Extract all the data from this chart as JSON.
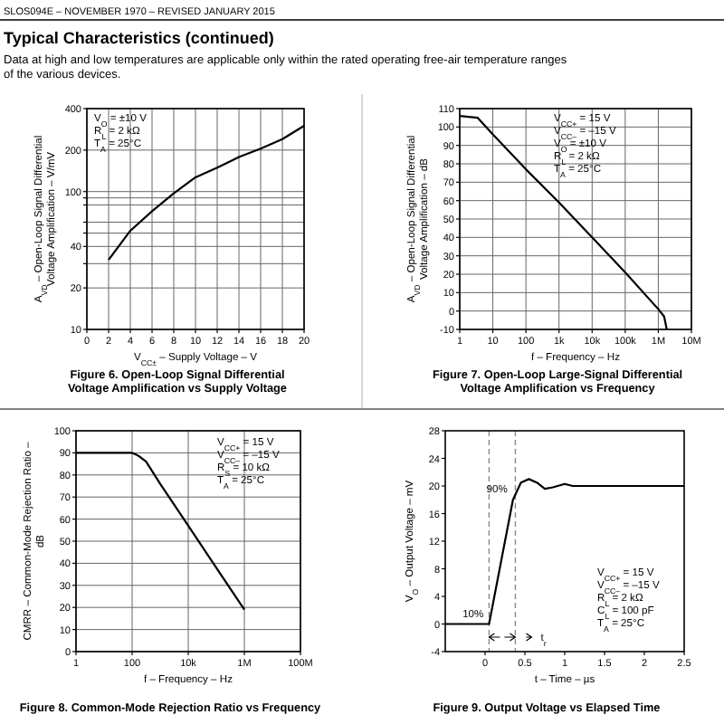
{
  "chart_data": [
    {
      "type": "other",
      "title": "Typical Characteristics (continued)",
      "annotations": [
        "SLOS094E – NOVEMBER 1970 – REVISED JANUARY 2015",
        "Data at high and low temperatures are applicable only within the rated operating free-air temperature ranges of the various devices."
      ]
    },
    {
      "type": "line",
      "title": "Figure 6. Open-Loop Signal Differential Voltage Amplification vs Supply Voltage",
      "xlabel": "V$_{CC±}$ – Supply Voltage – V",
      "ylabel": "A$_{VD}$ – Open-Loop Signal Differential Voltage Amplification – V/mV",
      "x": [
        2,
        4,
        6,
        8,
        10,
        12,
        14,
        16,
        18,
        20
      ],
      "values": [
        32,
        52,
        72,
        97,
        127,
        149,
        178,
        205,
        240,
        300
      ],
      "color": "#000000",
      "log": "y",
      "xlim": [
        0,
        20
      ],
      "ylim": [
        10,
        400
      ],
      "xticks": [
        0,
        2,
        4,
        6,
        8,
        10,
        12,
        14,
        16,
        18,
        20
      ],
      "yticks": [
        10,
        20,
        {
          "value": 30,
          "label": null
        },
        40,
        {
          "value": 50,
          "label": null
        },
        {
          "value": 60,
          "label": null
        },
        {
          "value": 80,
          "label": null
        },
        {
          "value": 90,
          "label": null
        },
        100,
        200,
        400
      ],
      "grid": true,
      "annotations": [
        "V$_{O}$ = ±10 V",
        "R$_{L}$ = 2 kΩ",
        "T$_{A}$ = 25°C"
      ]
    },
    {
      "type": "line",
      "title": "Figure 7. Open-Loop Large-Signal Differential Voltage Amplification vs Frequency",
      "xlabel": "f – Frequency – Hz",
      "ylabel": "A$_{VD}$ – Open-Loop Signal Differential Voltage Amplification – dB",
      "x": [
        1,
        3.5,
        10,
        100,
        1000,
        10000,
        100000,
        1000000,
        1500000,
        1800000
      ],
      "values": [
        106,
        105,
        96,
        77,
        59,
        40,
        21,
        1,
        -3,
        -10
      ],
      "color": "#000000",
      "log": "x",
      "xlim": [
        1,
        10000000
      ],
      "ylim": [
        -10,
        110
      ],
      "xticks": [
        1,
        10,
        100,
        {
          "value": 1000,
          "label": "1k"
        },
        {
          "value": 10000,
          "label": "10k"
        },
        {
          "value": 100000,
          "label": "100k"
        },
        {
          "value": 1000000,
          "label": "1M"
        },
        {
          "value": 10000000,
          "label": "10M"
        }
      ],
      "yticks": [
        -10,
        0,
        10,
        20,
        30,
        40,
        50,
        60,
        70,
        80,
        90,
        100,
        110
      ],
      "grid": true,
      "annotations": [
        "V$_{CC+}$ = 15 V",
        "V$_{CC–}$ = –15 V",
        "V$_{O}$ = ±10 V",
        "R$_{L}$ = 2 kΩ",
        "T$_{A}$ = 25°C"
      ]
    },
    {
      "type": "line",
      "title": "Figure 8. Common-Mode Rejection Ratio vs Frequency",
      "xlabel": "f – Frequency – Hz",
      "ylabel": "CMRR – Common-Mode Rejection Ratio – dB",
      "x": [
        1,
        100,
        150,
        200,
        316,
        1000,
        10000,
        100000,
        1000000
      ],
      "values": [
        90,
        90,
        89,
        88,
        86,
        76,
        57,
        38,
        19
      ],
      "color": "#000000",
      "log": "x",
      "xlim": [
        1,
        100000000
      ],
      "ylim": [
        0,
        100
      ],
      "xticks": [
        1,
        100,
        {
          "value": 10000,
          "label": "10k"
        },
        {
          "value": 1000000,
          "label": "1M"
        },
        {
          "value": 100000000,
          "label": "100M"
        }
      ],
      "yticks": [
        0,
        10,
        20,
        30,
        40,
        50,
        60,
        70,
        80,
        90,
        100
      ],
      "grid": true,
      "annotations": [
        "V$_{CC+}$ = 15 V",
        "V$_{CC–}$ = –15 V",
        "R$_{S}$ = 10 kΩ",
        "T$_{A}$ = 25°C"
      ]
    },
    {
      "type": "line",
      "title": "Figure 9. Output Voltage vs Elapsed Time",
      "xlabel": "t – Time – µs",
      "ylabel": "V$_{O}$ – Output Voltage – mV",
      "x": [
        -0.5,
        0,
        0.05,
        0.35,
        0.45,
        0.55,
        0.65,
        0.75,
        0.85,
        1.0,
        1.1,
        2.5
      ],
      "values": [
        0,
        0,
        0,
        18,
        20.5,
        21,
        20.5,
        19.6,
        19.8,
        20.3,
        20,
        20
      ],
      "color": "#000000",
      "xlim": [
        -0.5,
        2.5
      ],
      "ylim": [
        -4,
        28
      ],
      "xticks": [
        0,
        0.5,
        1,
        1.5,
        2,
        2.5
      ],
      "yticks": [
        -4,
        0,
        4,
        8,
        12,
        16,
        20,
        24,
        28
      ],
      "ref_lines": [
        {
          "axis": "x",
          "value": 0.05,
          "color": "#888888",
          "line_style": "dashed"
        },
        {
          "axis": "x",
          "value": 0.38,
          "color": "#888888",
          "line_style": "dashed",
          "label": "t$_{r}$"
        }
      ],
      "annotations": [
        "V$_{CC+}$ = 15 V",
        "V$_{CC–}$ = –15 V",
        "R$_{L}$ = 2 kΩ",
        "C$_{L}$ = 100 pF",
        "T$_{A}$ = 25°C",
        {
          "text": "90%",
          "x": 0.35,
          "y": 18
        },
        {
          "text": "10%",
          "x": 0.05,
          "y": 0
        }
      ]
    }
  ]
}
